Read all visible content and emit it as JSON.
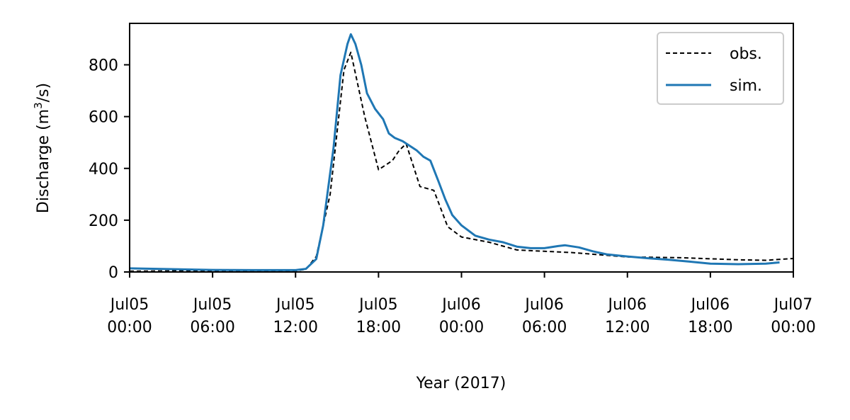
{
  "chart_data": {
    "type": "line",
    "xlabel": "Year (2017)",
    "ylabel_main": "Discharge (m",
    "ylabel_sup": "3",
    "ylabel_tail": "/s)",
    "xlim": [
      "2017-07-05 00:00",
      "2017-07-07 00:00"
    ],
    "ylim": [
      0,
      960
    ],
    "yticks": [
      0,
      200,
      400,
      600,
      800
    ],
    "xticks": [
      {
        "value": "2017-07-05 00:00",
        "line1": "Jul05",
        "line2": "00:00"
      },
      {
        "value": "2017-07-05 06:00",
        "line1": "Jul05",
        "line2": "06:00"
      },
      {
        "value": "2017-07-05 12:00",
        "line1": "Jul05",
        "line2": "12:00"
      },
      {
        "value": "2017-07-05 18:00",
        "line1": "Jul05",
        "line2": "18:00"
      },
      {
        "value": "2017-07-06 00:00",
        "line1": "Jul06",
        "line2": "00:00"
      },
      {
        "value": "2017-07-06 06:00",
        "line1": "Jul06",
        "line2": "06:00"
      },
      {
        "value": "2017-07-06 12:00",
        "line1": "Jul06",
        "line2": "12:00"
      },
      {
        "value": "2017-07-06 18:00",
        "line1": "Jul06",
        "line2": "18:00"
      },
      {
        "value": "2017-07-07 00:00",
        "line1": "Jul07",
        "line2": "00:00"
      }
    ],
    "legend_position": "top-right",
    "series": [
      {
        "name": "obs.",
        "color": "#000000",
        "style": "dashed",
        "points": [
          [
            "2017-07-05 00:00",
            3
          ],
          [
            "2017-07-05 06:00",
            5
          ],
          [
            "2017-07-05 12:00",
            5
          ],
          [
            "2017-07-05 12:45",
            10
          ],
          [
            "2017-07-05 13:30",
            60
          ],
          [
            "2017-07-05 14:30",
            300
          ],
          [
            "2017-07-05 15:30",
            780
          ],
          [
            "2017-07-05 16:00",
            848
          ],
          [
            "2017-07-05 17:00",
            600
          ],
          [
            "2017-07-05 18:00",
            395
          ],
          [
            "2017-07-05 19:00",
            430
          ],
          [
            "2017-07-05 19:30",
            470
          ],
          [
            "2017-07-05 20:00",
            495
          ],
          [
            "2017-07-05 21:00",
            330
          ],
          [
            "2017-07-05 22:00",
            315
          ],
          [
            "2017-07-05 23:00",
            175
          ],
          [
            "2017-07-06 00:00",
            135
          ],
          [
            "2017-07-06 02:00",
            115
          ],
          [
            "2017-07-06 04:00",
            85
          ],
          [
            "2017-07-06 06:00",
            80
          ],
          [
            "2017-07-06 08:00",
            75
          ],
          [
            "2017-07-06 12:00",
            58
          ],
          [
            "2017-07-06 16:00",
            55
          ],
          [
            "2017-07-06 20:00",
            47
          ],
          [
            "2017-07-06 22:00",
            45
          ],
          [
            "2017-07-07 00:00",
            52
          ]
        ]
      },
      {
        "name": "sim.",
        "color": "#1f77b4",
        "style": "solid",
        "points": [
          [
            "2017-07-05 00:00",
            14
          ],
          [
            "2017-07-05 03:00",
            11
          ],
          [
            "2017-07-05 06:00",
            8
          ],
          [
            "2017-07-05 09:00",
            7
          ],
          [
            "2017-07-05 12:00",
            7
          ],
          [
            "2017-07-05 12:45",
            12
          ],
          [
            "2017-07-05 13:30",
            50
          ],
          [
            "2017-07-05 14:00",
            180
          ],
          [
            "2017-07-05 14:45",
            480
          ],
          [
            "2017-07-05 15:15",
            760
          ],
          [
            "2017-07-05 15:45",
            880
          ],
          [
            "2017-07-05 16:00",
            918
          ],
          [
            "2017-07-05 16:20",
            880
          ],
          [
            "2017-07-05 16:45",
            800
          ],
          [
            "2017-07-05 17:10",
            690
          ],
          [
            "2017-07-05 17:45",
            630
          ],
          [
            "2017-07-05 18:20",
            590
          ],
          [
            "2017-07-05 18:45",
            535
          ],
          [
            "2017-07-05 19:10",
            518
          ],
          [
            "2017-07-05 19:45",
            505
          ],
          [
            "2017-07-05 20:10",
            490
          ],
          [
            "2017-07-05 20:45",
            470
          ],
          [
            "2017-07-05 21:15",
            445
          ],
          [
            "2017-07-05 21:45",
            430
          ],
          [
            "2017-07-05 22:20",
            350
          ],
          [
            "2017-07-05 22:50",
            280
          ],
          [
            "2017-07-05 23:20",
            220
          ],
          [
            "2017-07-06 00:00",
            180
          ],
          [
            "2017-07-06 01:00",
            140
          ],
          [
            "2017-07-06 02:00",
            125
          ],
          [
            "2017-07-06 03:00",
            115
          ],
          [
            "2017-07-06 04:00",
            98
          ],
          [
            "2017-07-06 05:00",
            92
          ],
          [
            "2017-07-06 06:00",
            92
          ],
          [
            "2017-07-06 07:00",
            100
          ],
          [
            "2017-07-06 07:30",
            103
          ],
          [
            "2017-07-06 08:30",
            95
          ],
          [
            "2017-07-06 09:30",
            80
          ],
          [
            "2017-07-06 10:30",
            68
          ],
          [
            "2017-07-06 12:00",
            60
          ],
          [
            "2017-07-06 13:30",
            53
          ],
          [
            "2017-07-06 15:00",
            47
          ],
          [
            "2017-07-06 16:30",
            40
          ],
          [
            "2017-07-06 18:00",
            32
          ],
          [
            "2017-07-06 20:00",
            30
          ],
          [
            "2017-07-06 22:00",
            32
          ],
          [
            "2017-07-06 23:00",
            37
          ]
        ]
      }
    ]
  }
}
